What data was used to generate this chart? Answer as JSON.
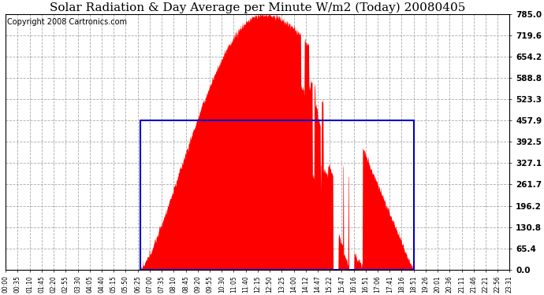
{
  "title": "Solar Radiation & Day Average per Minute W/m2 (Today) 20080405",
  "copyright_text": "Copyright 2008 Cartronics.com",
  "y_ticks": [
    0.0,
    65.4,
    130.8,
    196.2,
    261.7,
    327.1,
    392.5,
    457.9,
    523.3,
    588.8,
    654.2,
    719.6,
    785.0
  ],
  "y_max": 785.0,
  "x_labels": [
    "00:00",
    "00:35",
    "01:10",
    "01:45",
    "02:20",
    "02:55",
    "03:30",
    "04:05",
    "04:40",
    "05:15",
    "05:50",
    "06:25",
    "07:00",
    "07:35",
    "08:10",
    "08:45",
    "09:20",
    "09:55",
    "10:30",
    "11:05",
    "11:40",
    "12:15",
    "12:50",
    "13:25",
    "14:00",
    "14:12",
    "14:47",
    "15:22",
    "15:47",
    "16:16",
    "16:51",
    "17:06",
    "17:41",
    "18:16",
    "18:51",
    "19:26",
    "20:01",
    "20:36",
    "21:11",
    "21:46",
    "22:21",
    "22:56",
    "23:31"
  ],
  "solar_color": "#FF0000",
  "bg_color": "#FFFFFF",
  "grid_color": "#AAAAAA",
  "box_color": "#0000CC",
  "title_fontsize": 11,
  "copyright_fontsize": 7,
  "day_avg_value": 457.9,
  "sunrise_minute": 385,
  "sunset_minute": 1166,
  "total_minutes": 1440
}
